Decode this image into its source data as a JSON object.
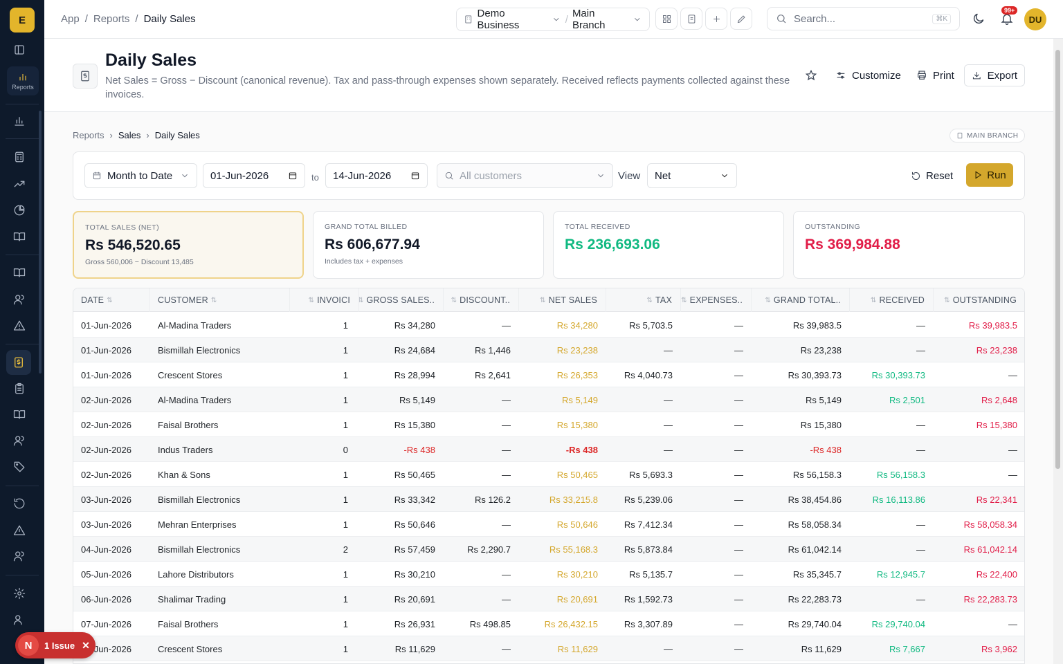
{
  "app": {
    "logo_letter": "E",
    "reports_label": "Reports"
  },
  "topbar": {
    "breadcrumb": [
      "App",
      "Reports",
      "Daily Sales"
    ],
    "business": "Demo Business",
    "branch": "Main Branch",
    "search_placeholder": "Search...",
    "search_shortcut": "⌘K",
    "notifications_badge": "99+",
    "avatar_initials": "DU"
  },
  "header": {
    "title": "Daily Sales",
    "description": "Net Sales = Gross − Discount (canonical revenue). Tax and pass-through expenses shown separately. Received reflects payments collected against these invoices.",
    "customize": "Customize",
    "print": "Print",
    "export": "Export"
  },
  "subcrumb": [
    "Reports",
    "Sales",
    "Daily Sales"
  ],
  "branch_badge": "MAIN BRANCH",
  "filters": {
    "period": "Month to Date",
    "from": "01-Jun-2026",
    "to_label": "to",
    "to": "14-Jun-2026",
    "customer_placeholder": "All customers",
    "view_label": "View",
    "view_value": "Net",
    "reset": "Reset",
    "run": "Run"
  },
  "cards": [
    {
      "label": "TOTAL SALES (NET)",
      "value": "Rs 546,520.65",
      "sub": "Gross 560,006 − Discount 13,485",
      "color": "#111827"
    },
    {
      "label": "GRAND TOTAL BILLED",
      "value": "Rs 606,677.94",
      "sub": "Includes tax + expenses",
      "color": "#111827"
    },
    {
      "label": "TOTAL RECEIVED",
      "value": "Rs 236,693.06",
      "sub": "",
      "color": "#10b981"
    },
    {
      "label": "OUTSTANDING",
      "value": "Rs 369,984.88",
      "sub": "",
      "color": "#e11d48"
    }
  ],
  "columns": [
    "DATE",
    "CUSTOMER",
    "INVOICES",
    "GROSS SALES",
    "DISCOUNT",
    "NET SALES",
    "TAX",
    "EXPENSES",
    "GRAND TOTAL",
    "RECEIVED",
    "OUTSTANDING"
  ],
  "columns_display": [
    "DATE",
    "CUSTOMER",
    "INVOICI",
    "GROSS SALES..",
    "DISCOUNT..",
    "NET SALES",
    "TAX",
    "EXPENSES..",
    "GRAND TOTAL..",
    "RECEIVED",
    "OUTSTANDING"
  ],
  "rows": [
    [
      "01-Jun-2026",
      "Al-Madina Traders",
      "1",
      "Rs 34,280",
      "—",
      "Rs 34,280",
      "Rs 5,703.5",
      "—",
      "Rs 39,983.5",
      "—",
      "Rs 39,983.5"
    ],
    [
      "01-Jun-2026",
      "Bismillah Electronics",
      "1",
      "Rs 24,684",
      "Rs 1,446",
      "Rs 23,238",
      "—",
      "—",
      "Rs 23,238",
      "—",
      "Rs 23,238"
    ],
    [
      "01-Jun-2026",
      "Crescent Stores",
      "1",
      "Rs 28,994",
      "Rs 2,641",
      "Rs 26,353",
      "Rs 4,040.73",
      "—",
      "Rs 30,393.73",
      "Rs 30,393.73",
      "—"
    ],
    [
      "02-Jun-2026",
      "Al-Madina Traders",
      "1",
      "Rs 5,149",
      "—",
      "Rs 5,149",
      "—",
      "—",
      "Rs 5,149",
      "Rs 2,501",
      "Rs 2,648"
    ],
    [
      "02-Jun-2026",
      "Faisal Brothers",
      "1",
      "Rs 15,380",
      "—",
      "Rs 15,380",
      "—",
      "—",
      "Rs 15,380",
      "—",
      "Rs 15,380"
    ],
    [
      "02-Jun-2026",
      "Indus Traders",
      "0",
      "-Rs 438",
      "—",
      "-Rs 438",
      "—",
      "—",
      "-Rs 438",
      "—",
      "—"
    ],
    [
      "02-Jun-2026",
      "Khan & Sons",
      "1",
      "Rs 50,465",
      "—",
      "Rs 50,465",
      "Rs 5,693.3",
      "—",
      "Rs 56,158.3",
      "Rs 56,158.3",
      "—"
    ],
    [
      "03-Jun-2026",
      "Bismillah Electronics",
      "1",
      "Rs 33,342",
      "Rs 126.2",
      "Rs 33,215.8",
      "Rs 5,239.06",
      "—",
      "Rs 38,454.86",
      "Rs 16,113.86",
      "Rs 22,341"
    ],
    [
      "03-Jun-2026",
      "Mehran Enterprises",
      "1",
      "Rs 50,646",
      "—",
      "Rs 50,646",
      "Rs 7,412.34",
      "—",
      "Rs 58,058.34",
      "—",
      "Rs 58,058.34"
    ],
    [
      "04-Jun-2026",
      "Bismillah Electronics",
      "2",
      "Rs 57,459",
      "Rs 2,290.7",
      "Rs 55,168.3",
      "Rs 5,873.84",
      "—",
      "Rs 61,042.14",
      "—",
      "Rs 61,042.14"
    ],
    [
      "05-Jun-2026",
      "Lahore Distributors",
      "1",
      "Rs 30,210",
      "—",
      "Rs 30,210",
      "Rs 5,135.7",
      "—",
      "Rs 35,345.7",
      "Rs 12,945.7",
      "Rs 22,400"
    ],
    [
      "06-Jun-2026",
      "Shalimar Trading",
      "1",
      "Rs 20,691",
      "—",
      "Rs 20,691",
      "Rs 1,592.73",
      "—",
      "Rs 22,283.73",
      "—",
      "Rs 22,283.73"
    ],
    [
      "07-Jun-2026",
      "Faisal Brothers",
      "1",
      "Rs 26,931",
      "Rs 498.85",
      "Rs 26,432.15",
      "Rs 3,307.89",
      "—",
      "Rs 29,740.04",
      "Rs 29,740.04",
      "—"
    ],
    [
      "07-Jun-2026",
      "Crescent Stores",
      "1",
      "Rs 11,629",
      "—",
      "Rs 11,629",
      "—",
      "—",
      "Rs 11,629",
      "Rs 7,667",
      "Rs 3,962"
    ]
  ],
  "issue": {
    "letter": "N",
    "label": "1 Issue"
  },
  "colors": {
    "net": "#d4a72c",
    "received": "#10b981",
    "outstanding": "#e11d48",
    "negative": "#dc2626"
  }
}
